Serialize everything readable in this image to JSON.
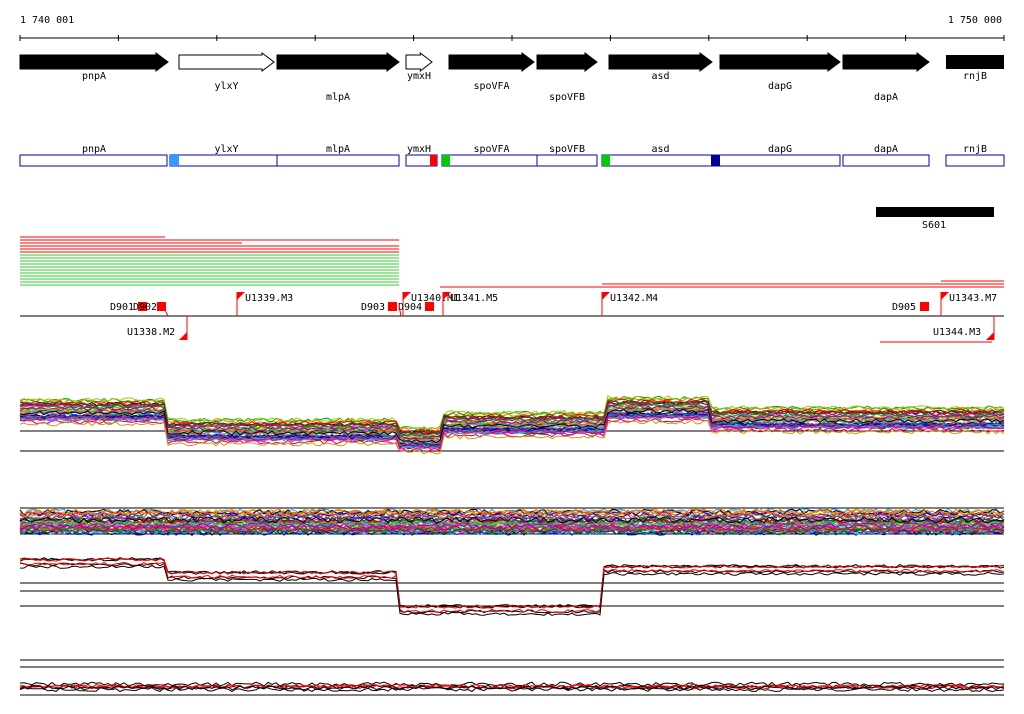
{
  "ruler": {
    "start_label": "1 740 001",
    "end_label": "1 750 000",
    "start_bp": 1740001,
    "end_bp": 1750000
  },
  "genes": [
    {
      "name": "pnpA",
      "strand": "+",
      "filled": true,
      "label_row": 0
    },
    {
      "name": "ylxY",
      "strand": "+",
      "filled": false,
      "label_row": 1
    },
    {
      "name": "mlpA",
      "strand": "+",
      "filled": true,
      "label_row": 2
    },
    {
      "name": "ymxH",
      "strand": "+",
      "filled": false,
      "label_row": 0
    },
    {
      "name": "spoVFA",
      "strand": "+",
      "filled": true,
      "label_row": 1
    },
    {
      "name": "spoVFB",
      "strand": "+",
      "filled": true,
      "label_row": 2
    },
    {
      "name": "asd",
      "strand": "+",
      "filled": true,
      "label_row": 0
    },
    {
      "name": "dapG",
      "strand": "+",
      "filled": true,
      "label_row": 1
    },
    {
      "name": "dapA",
      "strand": "+",
      "filled": true,
      "label_row": 2
    },
    {
      "name": "rnjB",
      "strand": "+",
      "filled": true,
      "label_row": 0
    }
  ],
  "gene_bar_labels": [
    "pnpA",
    "ylxY",
    "mlpA",
    "ymxH",
    "spoVFA",
    "spoVFB",
    "asd",
    "dapG",
    "dapA",
    "rnjB"
  ],
  "gene_bar_markers": [
    {
      "color": "#3399ff"
    },
    {
      "color": "#ff0000"
    },
    {
      "color": "#00cc00"
    },
    {
      "color": "#00cc00"
    },
    {
      "color": "#000099"
    }
  ],
  "region_label": "S601",
  "upshift_labels": [
    "U1338.M2",
    "U1339.M3",
    "U1340.M1",
    "U1341.M5",
    "U1342.M4",
    "U1343.M7",
    "U1344.M3"
  ],
  "downshift_labels": [
    "D901",
    "D902",
    "D903",
    "D904",
    "D905"
  ],
  "colors": {
    "gene_fill": "#000000",
    "gene_bar_border": "#0000aa",
    "transcript_red": "#ff0000",
    "transcript_green": "#33cc33",
    "marker_red": "#ff0000"
  }
}
